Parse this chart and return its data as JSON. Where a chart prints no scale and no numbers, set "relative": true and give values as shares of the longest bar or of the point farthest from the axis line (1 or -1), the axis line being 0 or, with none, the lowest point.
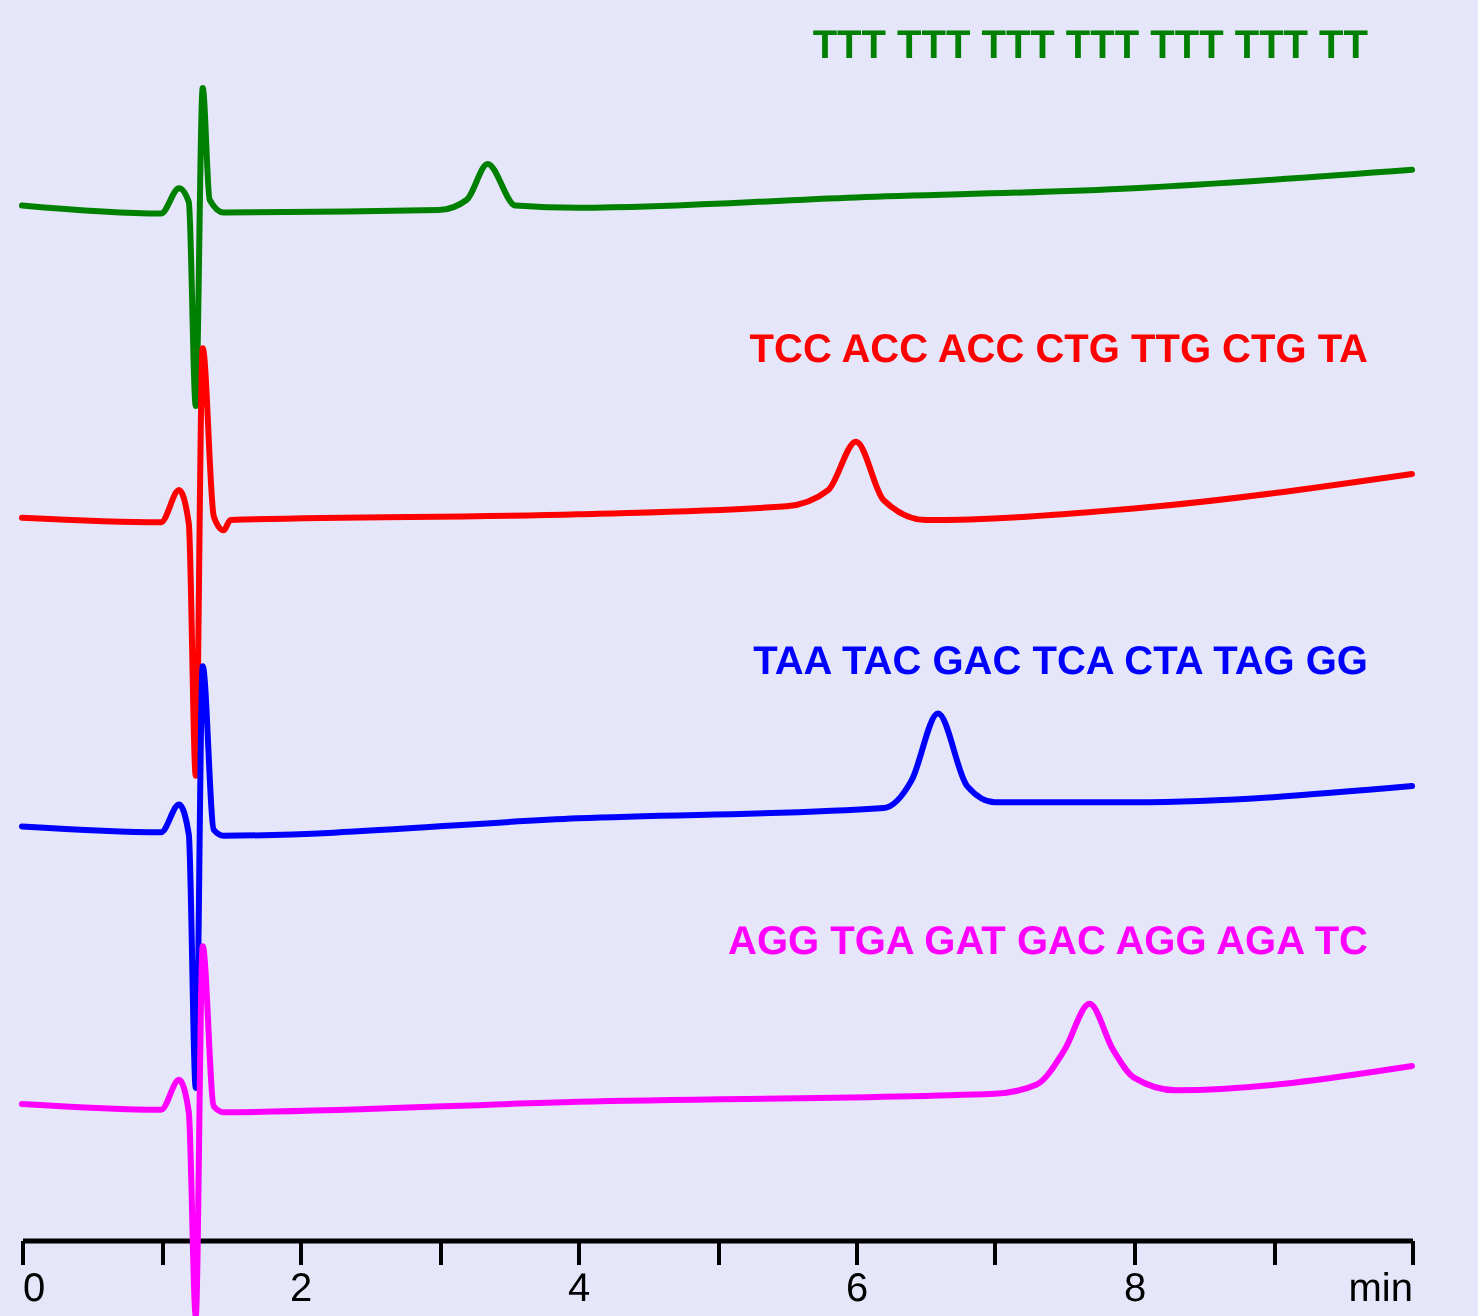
{
  "chart_data": {
    "type": "line",
    "relative": true,
    "xlabel": null,
    "xlim": [
      0,
      10
    ],
    "xticks": [
      0,
      {
        "value": 1,
        "label": null
      },
      2,
      {
        "value": 3,
        "label": null
      },
      4,
      {
        "value": 5,
        "label": null
      },
      6,
      {
        "value": 7,
        "label": null
      },
      8,
      {
        "value": 9,
        "label": null
      },
      {
        "value": 10,
        "label": "min"
      }
    ],
    "grid": false,
    "tick_labels": "x",
    "line_style": "solid",
    "marker": "none",
    "series": [
      {
        "name": "TTT TTT TTT TTT TTT TTT TT",
        "color": "#008000",
        "x": [
          0,
          1,
          1.13,
          1.2,
          1.25,
          1.3,
          1.35,
          1.45,
          3.0,
          3.2,
          3.35,
          3.55,
          4,
          6,
          8,
          10
        ],
        "values": [
          0.898,
          0.891,
          0.913,
          0.901,
          0.724,
          1.0,
          0.903,
          0.892,
          0.894,
          0.903,
          0.934,
          0.898,
          0.896,
          0.905,
          0.913,
          0.929
        ]
      },
      {
        "name": "TCC ACC ACC CTG TTG CTG TA",
        "color": "#ff0000",
        "x": [
          0,
          1,
          1.13,
          1.2,
          1.25,
          1.3,
          1.38,
          1.45,
          1.5,
          4,
          5.5,
          5.8,
          6.0,
          6.2,
          6.5,
          8,
          10
        ],
        "values": [
          0.627,
          0.623,
          0.651,
          0.622,
          0.403,
          0.774,
          0.628,
          0.616,
          0.625,
          0.63,
          0.637,
          0.651,
          0.693,
          0.642,
          0.625,
          0.635,
          0.665
        ]
      },
      {
        "name": "TAA TAC GAC TCA CTA TAG GG",
        "color": "#0000ff",
        "x": [
          0,
          1,
          1.13,
          1.2,
          1.25,
          1.3,
          1.38,
          1.45,
          4,
          6.2,
          6.4,
          6.59,
          6.8,
          7,
          8,
          10
        ],
        "values": [
          0.359,
          0.354,
          0.378,
          0.352,
          0.132,
          0.498,
          0.356,
          0.351,
          0.366,
          0.375,
          0.399,
          0.457,
          0.394,
          0.38,
          0.38,
          0.394
        ]
      },
      {
        "name": "AGG TGA GAT GAC AGG AGA TC",
        "color": "#ff00ff",
        "x": [
          0,
          1,
          1.13,
          1.2,
          1.25,
          1.3,
          1.38,
          1.45,
          4,
          7,
          7.3,
          7.5,
          7.68,
          7.85,
          8,
          8.3,
          10
        ],
        "values": [
          0.118,
          0.113,
          0.139,
          0.111,
          -0.066,
          0.255,
          0.116,
          0.111,
          0.12,
          0.127,
          0.135,
          0.165,
          0.205,
          0.165,
          0.141,
          0.13,
          0.151
        ]
      }
    ]
  }
}
